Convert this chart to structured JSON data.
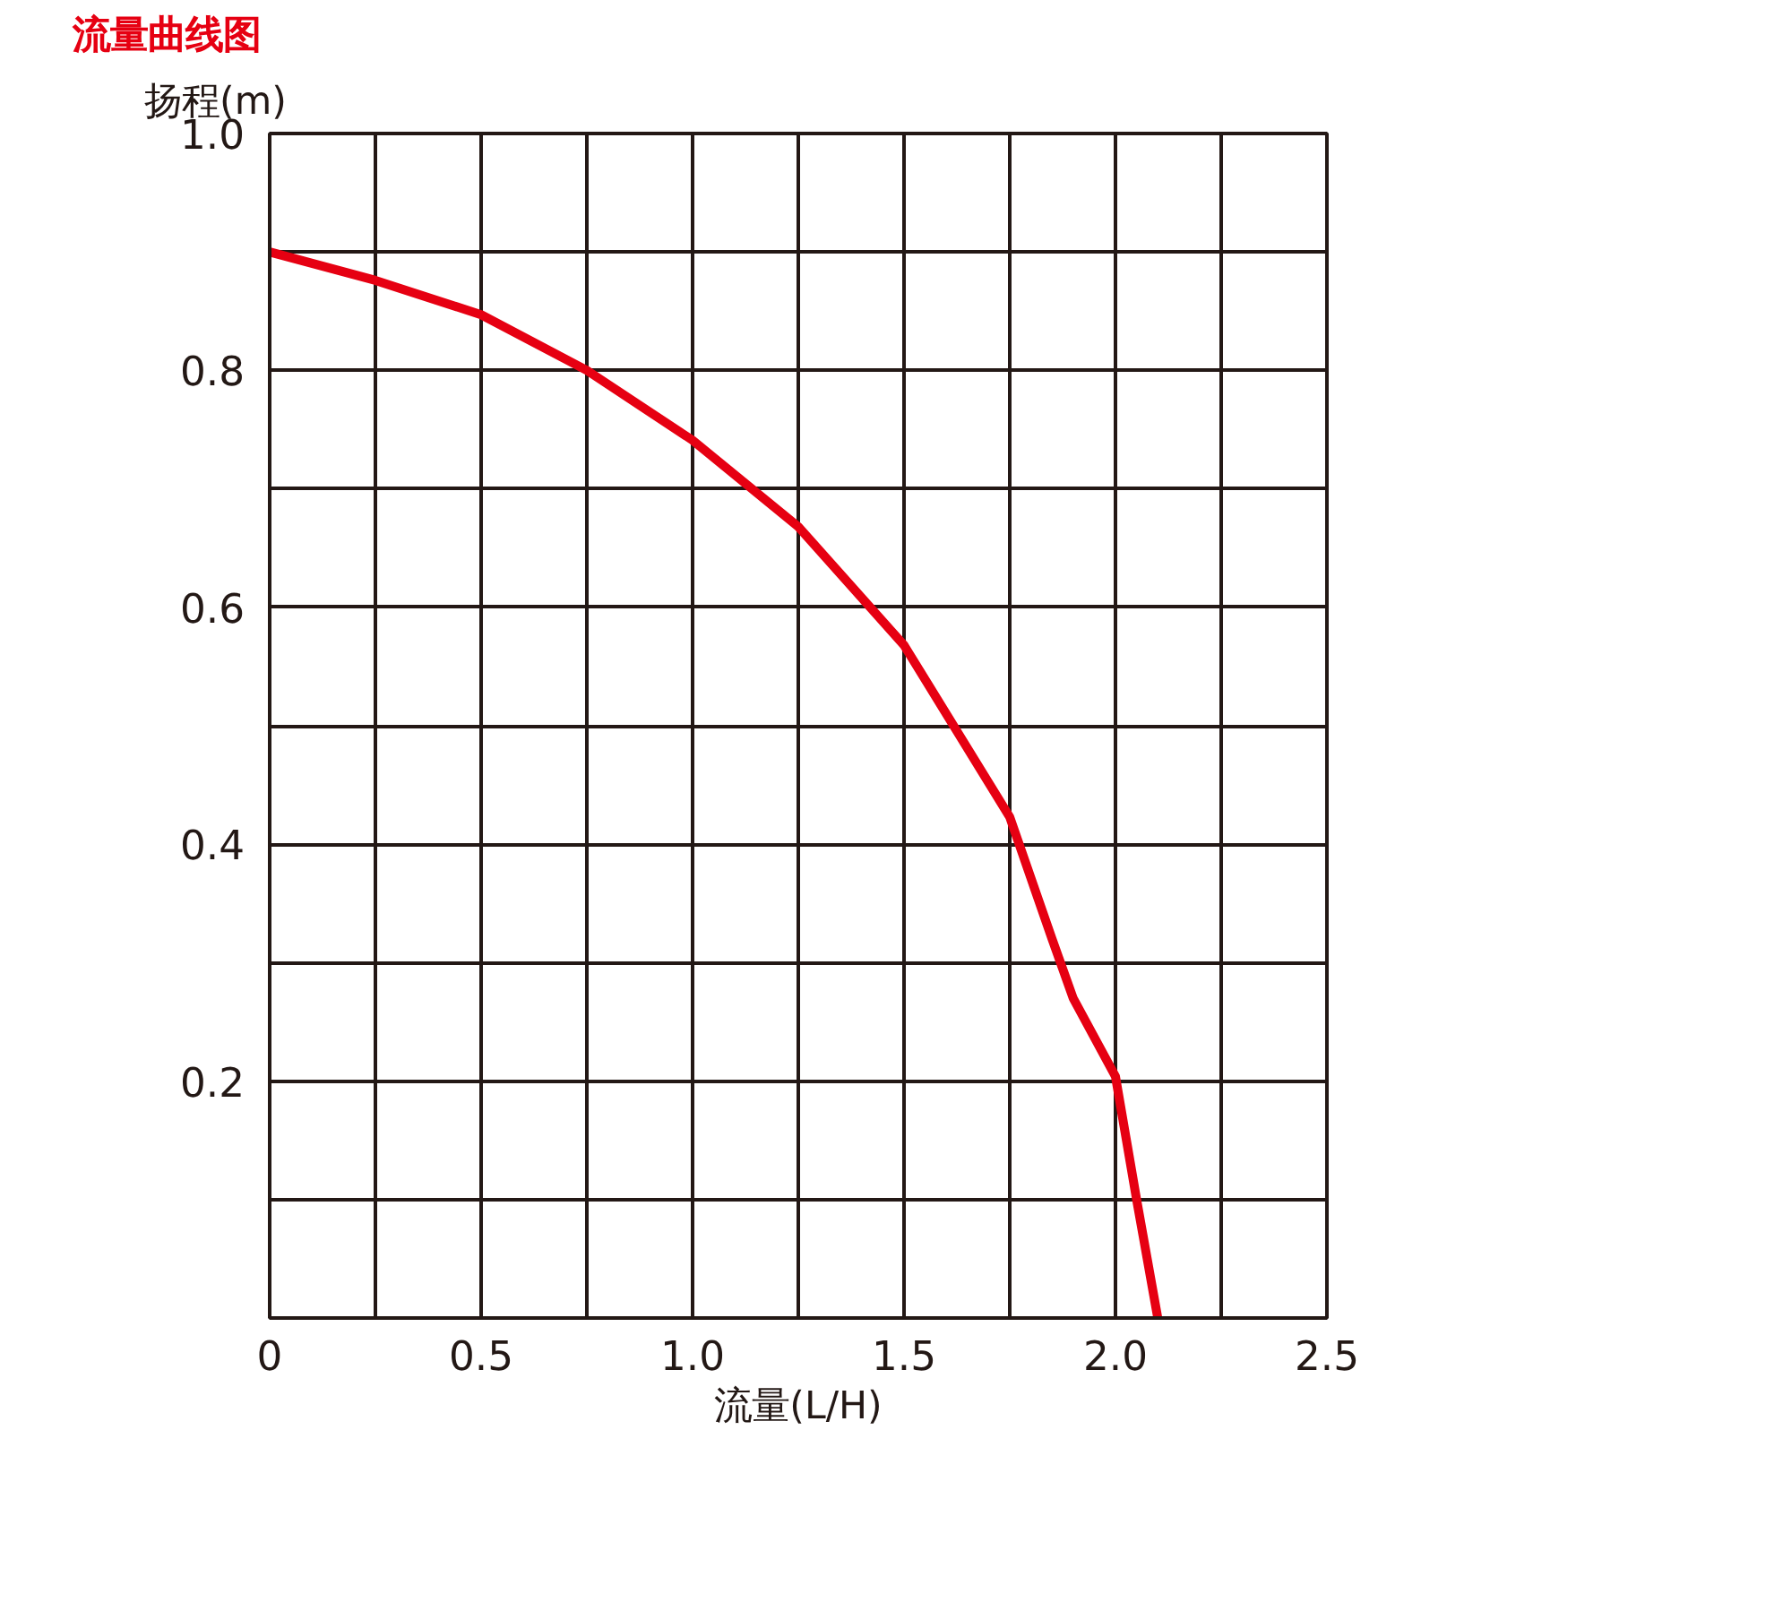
{
  "chart_data": {
    "type": "line",
    "title": "流量曲线图",
    "xlabel": "流量(L/H)",
    "ylabel": "扬程(m)",
    "xlim": [
      0,
      2.5
    ],
    "ylim": [
      0,
      1.0
    ],
    "xticks": [
      {
        "value": 0,
        "label": "0"
      },
      {
        "value": 0.25,
        "label": null
      },
      {
        "value": 0.5,
        "label": "0.5"
      },
      {
        "value": 0.75,
        "label": null
      },
      {
        "value": 1.0,
        "label": "1.0"
      },
      {
        "value": 1.25,
        "label": null
      },
      {
        "value": 1.5,
        "label": "1.5"
      },
      {
        "value": 1.75,
        "label": null
      },
      {
        "value": 2.0,
        "label": "2.0"
      },
      {
        "value": 2.25,
        "label": null
      },
      {
        "value": 2.5,
        "label": "2.5"
      }
    ],
    "yticks": [
      {
        "value": 0.1,
        "label": null
      },
      {
        "value": 0.2,
        "label": "0.2"
      },
      {
        "value": 0.3,
        "label": null
      },
      {
        "value": 0.4,
        "label": "0.4"
      },
      {
        "value": 0.5,
        "label": null
      },
      {
        "value": 0.6,
        "label": "0.6"
      },
      {
        "value": 0.7,
        "label": null
      },
      {
        "value": 0.8,
        "label": "0.8"
      },
      {
        "value": 0.9,
        "label": null
      },
      {
        "value": 1.0,
        "label": "1.0"
      }
    ],
    "grid": true,
    "marker": "none",
    "line_style": "solid",
    "series": [
      {
        "color": "#e60012",
        "x": [
          0,
          0.25,
          0.5,
          0.75,
          1.0,
          1.25,
          1.5,
          1.75,
          1.85,
          1.9,
          2.0,
          2.05,
          2.1
        ],
        "values": [
          0.9,
          0.876,
          0.847,
          0.8,
          0.741,
          0.668,
          0.568,
          0.423,
          0.32,
          0.27,
          0.204,
          0.1,
          0
        ]
      }
    ]
  }
}
